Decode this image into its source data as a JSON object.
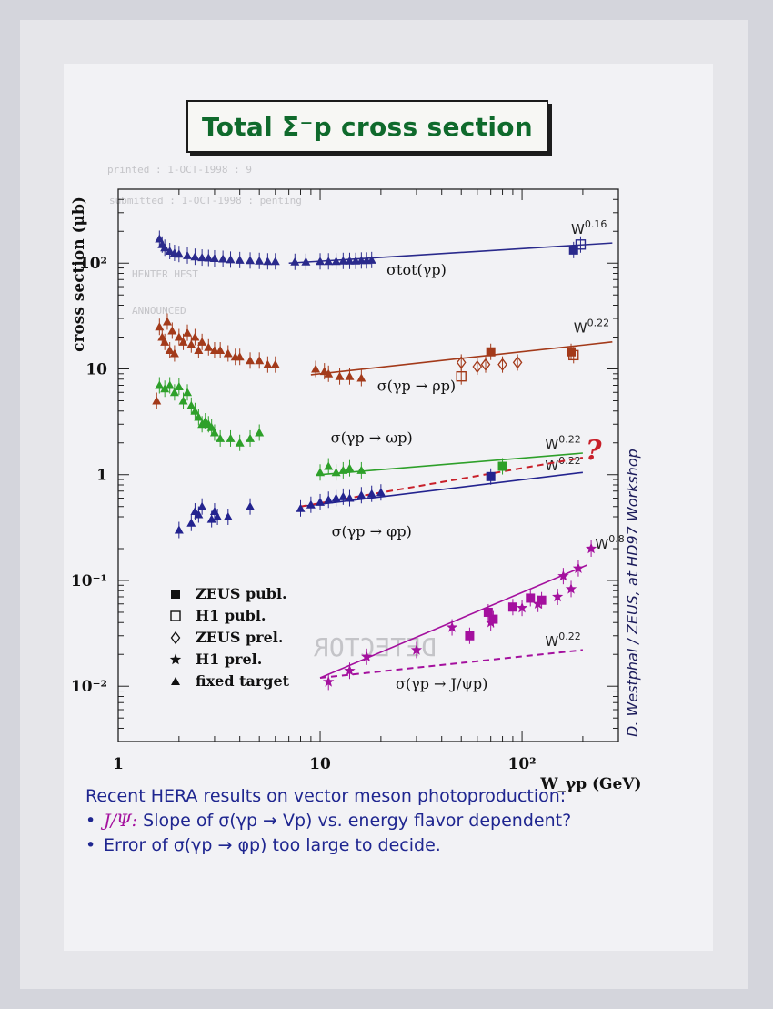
{
  "page": {
    "title": "Total Σ⁻p cross section",
    "signature": "D. Westphal / ZEUS, at HD97 Workshop",
    "question_mark": "?",
    "caption": {
      "line1": "Recent HERA results on vector meson photoproduction:",
      "line2_prefix": "J/Ψ:",
      "line2_text": " Slope of σ(γp → Vp) vs. energy flavor dependent?",
      "line3_text": "Error of σ(γp → φp) too large to decide."
    },
    "ghost_text": [
      "printed : 1-OCT-1998 : 9",
      "submitted : 1-OCT-1998 : penting",
      "HENTER HEST",
      "ANNOUNCED",
      "DETECTOR"
    ]
  },
  "chart_data": {
    "type": "scatter",
    "log_x": true,
    "log_y": true,
    "xlim": [
      1,
      300
    ],
    "ylim": [
      0.003,
      500
    ],
    "xlabel": "W_γp (GeV)",
    "ylabel": "cross section (μb)",
    "x_ticks": [
      {
        "value": 1,
        "label": "1"
      },
      {
        "value": 10,
        "label": "10"
      },
      {
        "value": 100,
        "label": "10²"
      }
    ],
    "y_ticks": [
      {
        "value": 0.01,
        "label": "10⁻²"
      },
      {
        "value": 0.1,
        "label": "10⁻¹"
      },
      {
        "value": 1,
        "label": "1"
      },
      {
        "value": 10,
        "label": "10"
      },
      {
        "value": 100,
        "label": "10²"
      }
    ],
    "legend": {
      "placement": "bottom-left",
      "entries": [
        {
          "marker": "filled-square",
          "label": "ZEUS publ."
        },
        {
          "marker": "open-square",
          "label": "H1 publ."
        },
        {
          "marker": "open-diamond",
          "label": "ZEUS prel."
        },
        {
          "marker": "star",
          "label": "H1 prel."
        },
        {
          "marker": "triangle",
          "label": "fixed target"
        }
      ]
    },
    "colors": {
      "tot": "#2a2a8c",
      "rho": "#a33a1a",
      "omega": "#2ea02a",
      "phi": "#23238f",
      "jpsi": "#a4109e",
      "fit_dashed_red": "#c8202a"
    },
    "process_labels": [
      {
        "id": "tot",
        "text": "σtot(γp)",
        "x": 30,
        "y": 78
      },
      {
        "id": "rho",
        "text": "σ(γp → ρp)",
        "x": 30,
        "y": 6.2
      },
      {
        "id": "omega",
        "text": "σ(γp → ωp)",
        "x": 18,
        "y": 2.0
      },
      {
        "id": "phi",
        "text": "σ(γp → φp)",
        "x": 18,
        "y": 0.26
      },
      {
        "id": "jpsi",
        "text": "σ(γp → J/ψp)",
        "x": 40,
        "y": 0.0095
      }
    ],
    "fit_lines": [
      {
        "series": "tot",
        "x": [
          7,
          280
        ],
        "y": [
          100,
          155
        ],
        "label": "W^0.16",
        "label_x": 175,
        "label_y": 190,
        "style": "solid"
      },
      {
        "series": "rho",
        "x": [
          9,
          280
        ],
        "y": [
          8.8,
          18
        ],
        "label": "W^0.22",
        "label_x": 180,
        "label_y": 22,
        "style": "solid"
      },
      {
        "series": "omega",
        "x": [
          10,
          200
        ],
        "y": [
          1.0,
          1.6
        ],
        "label": "W^0.22",
        "label_x": 130,
        "label_y": 1.75,
        "style": "solid"
      },
      {
        "series": "phi",
        "x": [
          8,
          200
        ],
        "y": [
          0.5,
          1.05
        ],
        "label": "W^0.22",
        "label_x": 130,
        "label_y": 1.1,
        "style": "solid"
      },
      {
        "series": "fit_dashed_red",
        "x": [
          8,
          200
        ],
        "y": [
          0.5,
          1.45
        ],
        "label": "",
        "style": "dashed"
      },
      {
        "series": "jpsi",
        "x": [
          10,
          210
        ],
        "y": [
          0.012,
          0.14
        ],
        "label": "W^0.8",
        "label_x": 230,
        "label_y": 0.2,
        "style": "solid"
      },
      {
        "series": "jpsi",
        "x": [
          10,
          200
        ],
        "y": [
          0.012,
          0.022
        ],
        "label": "W^0.22",
        "label_x": 130,
        "label_y": 0.024,
        "style": "dashed"
      }
    ],
    "series": [
      {
        "id": "tot",
        "marker": "triangle",
        "points": [
          [
            1.6,
            170
          ],
          [
            1.65,
            150
          ],
          [
            1.7,
            140
          ],
          [
            1.8,
            130
          ],
          [
            1.9,
            125
          ],
          [
            2.0,
            122
          ],
          [
            2.2,
            118
          ],
          [
            2.4,
            115
          ],
          [
            2.6,
            113
          ],
          [
            2.8,
            112
          ],
          [
            3.0,
            111
          ],
          [
            3.3,
            110
          ],
          [
            3.6,
            108
          ],
          [
            4.0,
            107
          ],
          [
            4.5,
            106
          ],
          [
            5.0,
            105
          ],
          [
            5.5,
            104
          ],
          [
            6.0,
            104
          ],
          [
            7.5,
            103
          ],
          [
            8.5,
            103
          ],
          [
            10,
            104
          ],
          [
            11,
            104
          ],
          [
            12,
            104
          ],
          [
            13,
            105
          ],
          [
            14,
            105
          ],
          [
            15,
            105
          ],
          [
            16,
            106
          ],
          [
            17,
            106
          ],
          [
            18,
            107
          ]
        ]
      },
      {
        "id": "tot",
        "marker": "filled-square",
        "points": [
          [
            180,
            133
          ]
        ]
      },
      {
        "id": "tot",
        "marker": "open-square",
        "points": [
          [
            195,
            150
          ]
        ]
      },
      {
        "id": "rho",
        "marker": "triangle",
        "points": [
          [
            1.55,
            5
          ],
          [
            1.6,
            25
          ],
          [
            1.65,
            20
          ],
          [
            1.7,
            18
          ],
          [
            1.75,
            28
          ],
          [
            1.8,
            15
          ],
          [
            1.85,
            23
          ],
          [
            1.9,
            14
          ],
          [
            2.0,
            20
          ],
          [
            2.1,
            18
          ],
          [
            2.2,
            22
          ],
          [
            2.3,
            17
          ],
          [
            2.4,
            20
          ],
          [
            2.5,
            15
          ],
          [
            2.6,
            18
          ],
          [
            2.8,
            16
          ],
          [
            3.0,
            15
          ],
          [
            3.2,
            15
          ],
          [
            3.5,
            14
          ],
          [
            3.8,
            13
          ],
          [
            4.0,
            13
          ],
          [
            4.5,
            12
          ],
          [
            5.0,
            12
          ],
          [
            5.5,
            11
          ],
          [
            6.0,
            11
          ],
          [
            9.5,
            10
          ],
          [
            10.5,
            9.5
          ],
          [
            11,
            9
          ],
          [
            12.5,
            8.5
          ],
          [
            14,
            8.5
          ],
          [
            16,
            8.2
          ]
        ]
      },
      {
        "id": "rho",
        "marker": "filled-square",
        "points": [
          [
            70,
            14.5
          ],
          [
            175,
            14.5
          ]
        ]
      },
      {
        "id": "rho",
        "marker": "open-square",
        "points": [
          [
            50,
            8.5
          ],
          [
            180,
            13.5
          ]
        ]
      },
      {
        "id": "rho",
        "marker": "open-diamond",
        "points": [
          [
            50,
            11.5
          ],
          [
            60,
            10.5
          ],
          [
            66,
            11
          ],
          [
            80,
            11
          ],
          [
            95,
            11.5
          ]
        ]
      },
      {
        "id": "omega",
        "marker": "triangle",
        "points": [
          [
            1.6,
            7
          ],
          [
            1.7,
            6.5
          ],
          [
            1.8,
            7
          ],
          [
            1.9,
            6
          ],
          [
            2.0,
            6.8
          ],
          [
            2.1,
            5
          ],
          [
            2.2,
            6
          ],
          [
            2.3,
            4.5
          ],
          [
            2.4,
            4
          ],
          [
            2.5,
            3.5
          ],
          [
            2.6,
            3
          ],
          [
            2.7,
            3.2
          ],
          [
            2.8,
            3
          ],
          [
            2.9,
            2.8
          ],
          [
            3.0,
            2.5
          ],
          [
            3.2,
            2.2
          ],
          [
            3.6,
            2.2
          ],
          [
            4.0,
            2.0
          ],
          [
            4.5,
            2.2
          ],
          [
            5.0,
            2.5
          ],
          [
            10,
            1.05
          ],
          [
            11,
            1.2
          ],
          [
            12,
            1.05
          ],
          [
            13,
            1.1
          ],
          [
            14,
            1.15
          ],
          [
            16,
            1.1
          ]
        ]
      },
      {
        "id": "omega",
        "marker": "filled-square",
        "points": [
          [
            80,
            1.2
          ]
        ]
      },
      {
        "id": "phi",
        "marker": "triangle",
        "points": [
          [
            2.0,
            0.3
          ],
          [
            2.3,
            0.35
          ],
          [
            2.4,
            0.45
          ],
          [
            2.5,
            0.42
          ],
          [
            2.6,
            0.5
          ],
          [
            2.9,
            0.38
          ],
          [
            3.0,
            0.45
          ],
          [
            3.1,
            0.4
          ],
          [
            3.5,
            0.4
          ],
          [
            4.5,
            0.5
          ],
          [
            8,
            0.48
          ],
          [
            9,
            0.52
          ],
          [
            10,
            0.55
          ],
          [
            11,
            0.58
          ],
          [
            12,
            0.6
          ],
          [
            13,
            0.62
          ],
          [
            14,
            0.6
          ],
          [
            16,
            0.64
          ],
          [
            18,
            0.66
          ],
          [
            20,
            0.68
          ]
        ]
      },
      {
        "id": "phi",
        "marker": "filled-square",
        "points": [
          [
            70,
            0.96
          ]
        ]
      },
      {
        "id": "jpsi",
        "marker": "star",
        "points": [
          [
            11,
            0.011
          ],
          [
            14,
            0.014
          ],
          [
            17,
            0.019
          ],
          [
            30,
            0.022
          ],
          [
            45,
            0.036
          ],
          [
            70,
            0.04
          ],
          [
            100,
            0.055
          ],
          [
            120,
            0.06
          ],
          [
            150,
            0.07
          ],
          [
            175,
            0.083
          ],
          [
            220,
            0.2
          ],
          [
            160,
            0.11
          ],
          [
            190,
            0.13
          ]
        ]
      },
      {
        "id": "jpsi",
        "marker": "filled-square",
        "points": [
          [
            55,
            0.03
          ],
          [
            68,
            0.05
          ],
          [
            72,
            0.043
          ],
          [
            90,
            0.056
          ],
          [
            110,
            0.068
          ],
          [
            125,
            0.065
          ]
        ]
      }
    ]
  }
}
